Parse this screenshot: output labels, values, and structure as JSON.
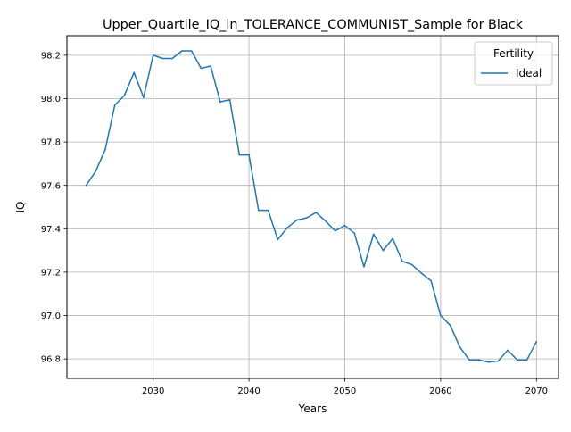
{
  "chart_data": {
    "type": "line",
    "title": "Upper_Quartile_IQ_in_TOLERANCE_COMMUNIST_Sample for Black",
    "xlabel": "Years",
    "ylabel": "IQ",
    "xlim": [
      2021,
      2072.3
    ],
    "ylim": [
      96.71,
      98.29
    ],
    "xticks": [
      2030,
      2040,
      2050,
      2060,
      2070
    ],
    "yticks": [
      96.8,
      97.0,
      97.2,
      97.4,
      97.6,
      97.8,
      98.0,
      98.2
    ],
    "ytick_labels": [
      "96.8",
      "97.0",
      "97.2",
      "97.4",
      "97.6",
      "97.8",
      "98.0",
      "98.2"
    ],
    "grid": true,
    "legend": {
      "title": "Fertility",
      "placement": "top-right"
    },
    "series": [
      {
        "name": "Ideal",
        "color": "#1f77b4",
        "x": [
          2023,
          2024,
          2025,
          2026,
          2027,
          2028,
          2029,
          2030,
          2031,
          2032,
          2033,
          2034,
          2035,
          2036,
          2037,
          2038,
          2039,
          2040,
          2041,
          2042,
          2043,
          2044,
          2045,
          2046,
          2047,
          2048,
          2049,
          2050,
          2051,
          2052,
          2053,
          2054,
          2055,
          2056,
          2057,
          2058,
          2059,
          2060,
          2061,
          2062,
          2063,
          2064,
          2065,
          2066,
          2067,
          2068,
          2069,
          2070
        ],
        "y": [
          97.6,
          97.665,
          97.765,
          97.97,
          98.015,
          98.12,
          98.005,
          98.2,
          98.185,
          98.185,
          98.22,
          98.22,
          98.14,
          98.15,
          97.985,
          97.995,
          97.74,
          97.74,
          97.485,
          97.485,
          97.35,
          97.405,
          97.44,
          97.45,
          97.475,
          97.435,
          97.39,
          97.415,
          97.38,
          97.225,
          97.375,
          97.3,
          97.355,
          97.25,
          97.235,
          97.195,
          97.16,
          97.0,
          96.955,
          96.855,
          96.795,
          96.795,
          96.785,
          96.79,
          96.84,
          96.795,
          96.795,
          96.88
        ]
      }
    ]
  }
}
